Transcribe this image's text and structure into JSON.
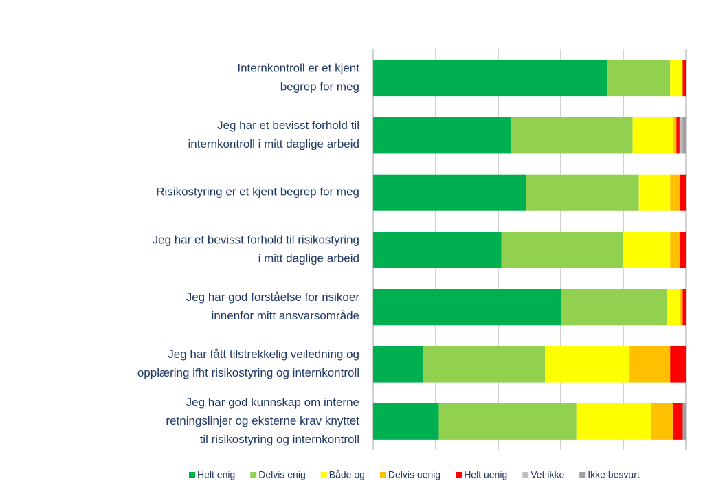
{
  "chart_data": {
    "type": "stacked-barh",
    "categories": [
      [
        "Internkontroll er et kjent",
        "begrep for meg"
      ],
      [
        "Jeg har et bevisst forhold til",
        "internkontroll i mitt daglige arbeid"
      ],
      [
        "Risikostyring er et kjent begrep for meg"
      ],
      [
        "Jeg har et bevisst forhold til risikostyring",
        "i mitt daglige arbeid"
      ],
      [
        "Jeg har god forståelse for risikoer",
        "innenfor mitt ansvarsområde"
      ],
      [
        "Jeg har fått tilstrekkelig veiledning og",
        "opplæring ifht risikostyring og internkontroll"
      ],
      [
        "Jeg har god kunnskap om interne",
        "retningslinjer og eksterne krav knyttet",
        "til risikostyring og internkontroll"
      ]
    ],
    "series": [
      {
        "name": "Helt enig",
        "color": "#00b050",
        "values": [
          75,
          44,
          49,
          41,
          60,
          16,
          21
        ]
      },
      {
        "name": "Delvis enig",
        "color": "#92d050",
        "values": [
          20,
          39,
          36,
          39,
          34,
          39,
          44
        ]
      },
      {
        "name": "Både og",
        "color": "#ffff00",
        "values": [
          4,
          13,
          10,
          15,
          4,
          27,
          24
        ]
      },
      {
        "name": "Delvis uenig",
        "color": "#ffc000",
        "values": [
          0,
          1,
          3,
          3,
          1,
          13,
          7
        ]
      },
      {
        "name": "Helt uenig",
        "color": "#ff0000",
        "values": [
          1,
          1,
          2,
          2,
          1,
          5,
          3
        ]
      },
      {
        "name": "Vet ikke",
        "color": "#bfbfbf",
        "values": [
          0,
          1,
          0,
          0,
          0,
          0,
          0
        ]
      },
      {
        "name": "Ikke besvart",
        "color": "#a0a0a0",
        "values": [
          0,
          1,
          0,
          0,
          0,
          0,
          1
        ]
      }
    ],
    "xlim": [
      0,
      100
    ],
    "xticks": [
      0,
      20,
      40,
      60,
      80,
      100
    ],
    "grid": true,
    "legend": "bottom"
  }
}
